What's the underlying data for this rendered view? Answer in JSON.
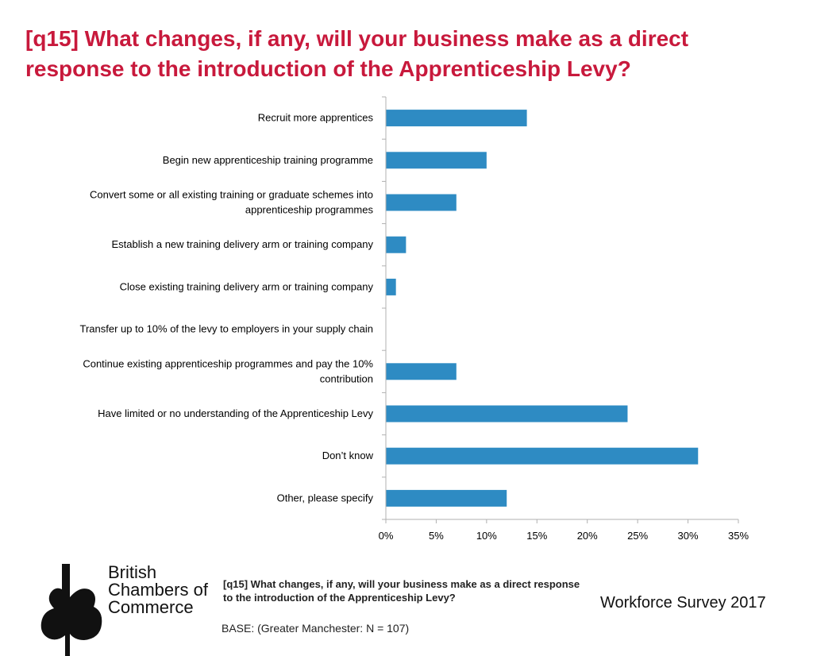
{
  "title": "[q15] What changes, if any, will your business make as a direct response to the introduction of the Apprenticeship Levy?",
  "chart_data": {
    "type": "bar",
    "orientation": "horizontal",
    "categories": [
      [
        "Recruit more apprentices"
      ],
      [
        "Begin new apprenticeship training programme"
      ],
      [
        "Convert some or all existing training or graduate schemes into",
        "apprenticeship programmes"
      ],
      [
        "Establish a new training delivery arm or training company"
      ],
      [
        "Close existing training delivery arm or training company"
      ],
      [
        "Transfer up to 10% of the levy to employers in your supply chain"
      ],
      [
        "Continue existing apprenticeship programmes and pay the 10%",
        "contribution"
      ],
      [
        "Have limited or no understanding of the Apprenticeship Levy"
      ],
      [
        "Don’t know"
      ],
      [
        "Other, please specify"
      ]
    ],
    "values": [
      14,
      10,
      7,
      2,
      1,
      0,
      7,
      24,
      31,
      12
    ],
    "xlim": [
      0,
      35
    ],
    "xticks": [
      "0%",
      "5%",
      "10%",
      "15%",
      "20%",
      "25%",
      "30%",
      "35%"
    ],
    "bar_color": "#2e8bc3",
    "grid": false,
    "legend": "none"
  },
  "footer": {
    "brand": [
      "British",
      "Chambers of",
      "Commerce"
    ],
    "question": "[q15] What changes, if any, will your business make as a direct response to the introduction of the Apprenticeship Levy?",
    "survey": "Workforce Survey 2017",
    "base": "BASE: (Greater Manchester: N = 107)"
  }
}
